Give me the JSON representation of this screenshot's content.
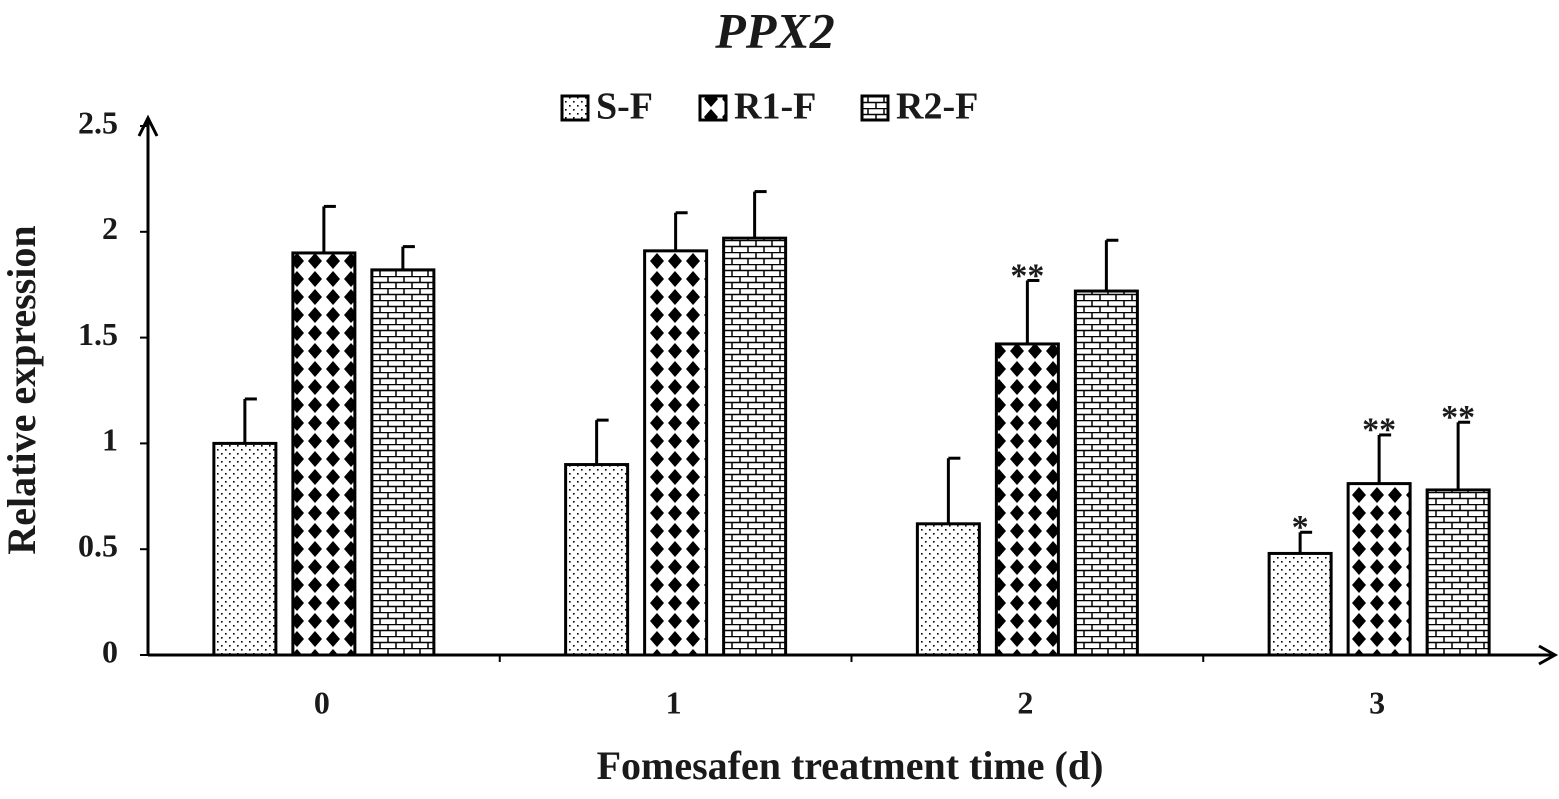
{
  "chart_data": {
    "type": "bar",
    "title": "PPX2",
    "x_label": "Fomesafen treatment time (d)",
    "y_label": "Relative expression",
    "categories": [
      "0",
      "1",
      "2",
      "3"
    ],
    "series": [
      {
        "name": "S-F",
        "color": "#000000",
        "pattern": "dots",
        "values": [
          1.0,
          0.9,
          0.62,
          0.48
        ],
        "errors": [
          0.21,
          0.21,
          0.31,
          0.1
        ],
        "significance": [
          null,
          null,
          null,
          "*"
        ]
      },
      {
        "name": "R1-F",
        "color": "#000000",
        "pattern": "diamonds",
        "values": [
          1.9,
          1.91,
          1.47,
          0.81
        ],
        "errors": [
          0.22,
          0.18,
          0.3,
          0.23
        ],
        "significance": [
          null,
          null,
          "**",
          "**"
        ]
      },
      {
        "name": "R2-F",
        "color": "#000000",
        "pattern": "bricks",
        "values": [
          1.82,
          1.97,
          1.72,
          0.78
        ],
        "errors": [
          0.11,
          0.22,
          0.24,
          0.32
        ],
        "significance": [
          null,
          null,
          null,
          "**"
        ]
      }
    ],
    "ylim": [
      0,
      2.5
    ],
    "yticks": [
      0,
      0.5,
      1,
      1.5,
      2,
      2.5
    ],
    "grid": false,
    "legend": "top"
  }
}
